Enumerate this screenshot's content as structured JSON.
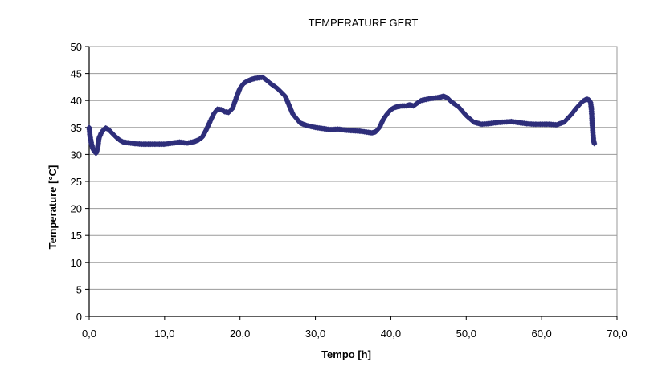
{
  "chart_data": {
    "type": "scatter",
    "title": "TEMPERATURE GERT",
    "xlabel": "Tempo [h]",
    "ylabel": "Temperature [°C]",
    "xlim": [
      0,
      70
    ],
    "ylim": [
      0,
      50
    ],
    "x_ticks": [
      "0,0",
      "10,0",
      "20,0",
      "30,0",
      "40,0",
      "50,0",
      "60,0",
      "70,0"
    ],
    "y_ticks": [
      "0",
      "5",
      "10",
      "15",
      "20",
      "25",
      "30",
      "35",
      "40",
      "45",
      "50"
    ],
    "grid": "horizontal",
    "legend": "none",
    "colors": {
      "series": "#2e2e7a",
      "grid": "#9a9a9a",
      "axis": "#000000"
    },
    "marker": "diamond",
    "series": [
      {
        "x": [
          0.0,
          0.1,
          0.3,
          0.5,
          0.7,
          0.9,
          1.1,
          1.3,
          1.6,
          1.9,
          2.2,
          2.6,
          3.0,
          3.5,
          4.0,
          4.5,
          5.0,
          5.5,
          6.0,
          7.0,
          8.0,
          9.0,
          10.0,
          11.0,
          12.0,
          13.0,
          14.0,
          14.5,
          15.0,
          15.5,
          16.0,
          16.5,
          17.0,
          17.5,
          18.0,
          18.5,
          19.0,
          19.5,
          20.0,
          20.5,
          21.0,
          21.5,
          22.0,
          22.5,
          23.0,
          23.5,
          24.0,
          25.0,
          26.0,
          27.0,
          28.0,
          29.0,
          30.0,
          31.0,
          32.0,
          33.0,
          34.0,
          35.0,
          36.0,
          37.0,
          37.5,
          38.0,
          38.5,
          39.0,
          39.5,
          40.0,
          40.5,
          41.0,
          41.5,
          42.0,
          42.5,
          43.0,
          43.5,
          44.0,
          45.0,
          46.0,
          46.5,
          47.0,
          47.5,
          48.0,
          49.0,
          50.0,
          51.0,
          52.0,
          53.0,
          54.0,
          55.0,
          56.0,
          57.0,
          58.0,
          59.0,
          60.0,
          61.0,
          62.0,
          63.0,
          64.0,
          64.5,
          65.0,
          65.5,
          66.0,
          66.3,
          66.5,
          66.6,
          66.7,
          66.8,
          66.9,
          67.0
        ],
        "y": [
          35.0,
          33.5,
          32.0,
          31.0,
          30.5,
          30.2,
          31.0,
          33.0,
          34.0,
          34.6,
          34.9,
          34.6,
          34.0,
          33.3,
          32.7,
          32.3,
          32.2,
          32.1,
          32.0,
          31.9,
          31.9,
          31.9,
          31.9,
          32.1,
          32.3,
          32.1,
          32.4,
          32.7,
          33.2,
          34.5,
          36.0,
          37.5,
          38.4,
          38.3,
          37.9,
          37.8,
          38.5,
          40.5,
          42.3,
          43.2,
          43.6,
          43.9,
          44.1,
          44.2,
          44.3,
          43.8,
          43.2,
          42.2,
          40.8,
          37.5,
          35.8,
          35.3,
          35.0,
          34.8,
          34.6,
          34.7,
          34.5,
          34.4,
          34.3,
          34.1,
          34.0,
          34.2,
          35.0,
          36.5,
          37.5,
          38.3,
          38.7,
          38.9,
          39.0,
          39.0,
          39.2,
          39.0,
          39.5,
          40.0,
          40.3,
          40.5,
          40.6,
          40.8,
          40.5,
          39.8,
          38.8,
          37.2,
          36.0,
          35.6,
          35.7,
          35.9,
          36.0,
          36.1,
          35.9,
          35.7,
          35.6,
          35.6,
          35.6,
          35.5,
          36.0,
          37.5,
          38.4,
          39.2,
          39.9,
          40.3,
          40.1,
          39.6,
          38.5,
          36.0,
          34.0,
          32.5,
          32.0
        ]
      }
    ]
  }
}
